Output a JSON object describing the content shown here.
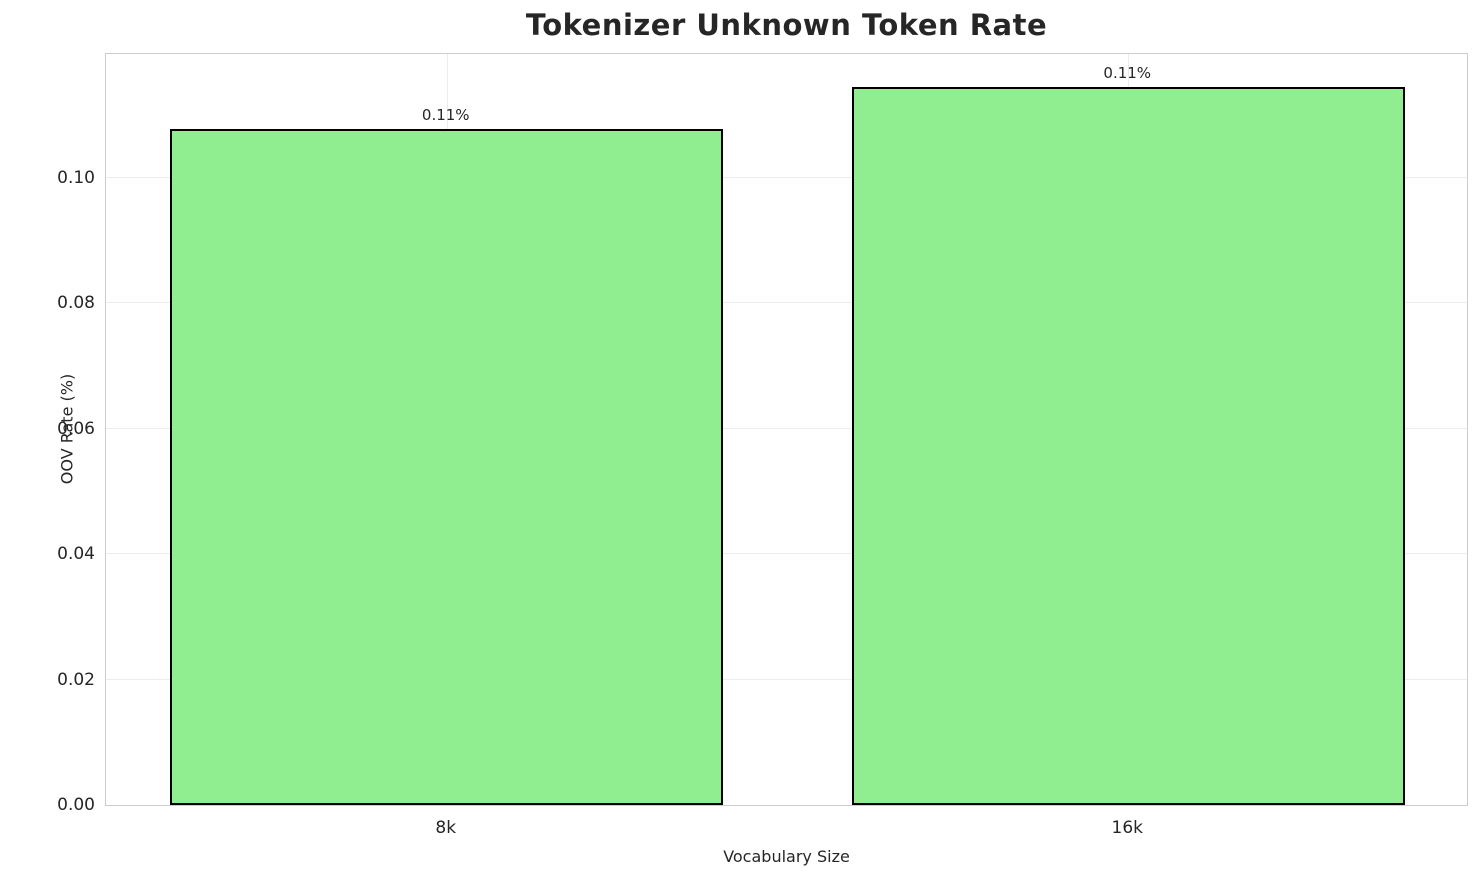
{
  "title": "Tokenizer Unknown Token Rate",
  "chart_data": {
    "type": "bar",
    "title": "Tokenizer Unknown Token Rate",
    "categories": [
      "8k",
      "16k"
    ],
    "values": [
      0.1078,
      0.1145
    ],
    "bar_labels": [
      "0.11%",
      "0.11%"
    ],
    "xlabel": "Vocabulary Size",
    "ylabel": "OOV Rate (%)",
    "ylim": [
      0,
      0.12
    ],
    "ytick_labels": [
      "0.00",
      "0.02",
      "0.04",
      "0.06",
      "0.08",
      "0.10"
    ],
    "grid": true,
    "legend_position": "none",
    "bar_width_fraction": 0.406,
    "colors": {
      "bar_fill": "#90ee90",
      "bar_edge": "#000000",
      "grid": "#ececec",
      "spine": "#cccccc",
      "text": "#262626",
      "background": "#ffffff"
    }
  }
}
